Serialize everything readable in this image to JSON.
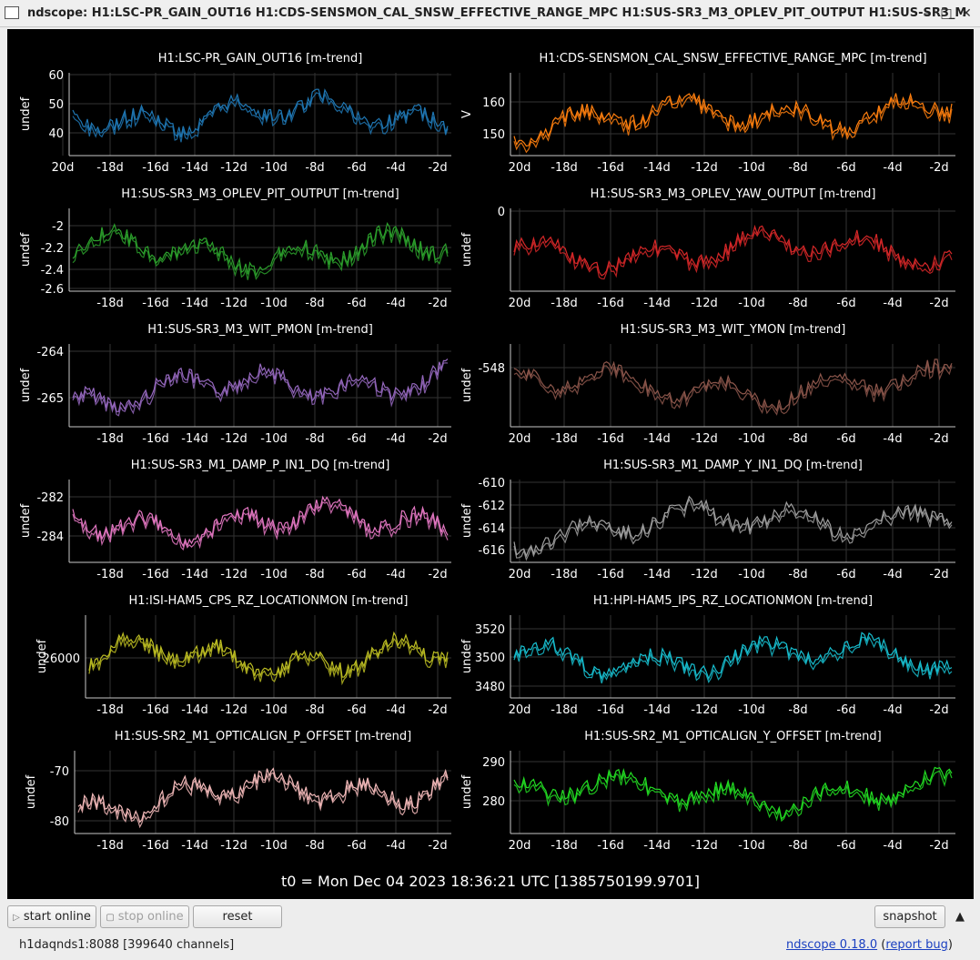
{
  "window": {
    "title": "ndscope: H1:LSC-PR_GAIN_OUT16 H1:CDS-SENSMON_CAL_SNSW_EFFECTIVE_RANGE_MPC H1:SUS-SR3_M3_OPLEV_PIT_OUTPUT H1:SUS-SR3_M",
    "minimize_glyph": "–",
    "maximize_glyph": "□",
    "close_glyph": "✕"
  },
  "t0_label": "t0 = Mon Dec 04 2023 18:36:21 UTC [1385750199.9701]",
  "toolbar": {
    "start_label": "start online",
    "stop_label": "stop online",
    "reset_label": "reset",
    "snapshot_label": "snapshot",
    "collapse_glyph": "▲"
  },
  "status": {
    "server": "h1daqnds1:8088  [399640 channels]",
    "version": "ndscope 0.18.0",
    "open_paren": " (",
    "report_bug": "report bug",
    "close_paren": ")"
  },
  "plots": [
    {
      "title": "H1:LSC-PR_GAIN_OUT16 [m-trend]",
      "ylabel": "undef",
      "color": "#1f77b4",
      "yticks": [
        "60",
        "50",
        "40"
      ],
      "xticks": [
        "20d",
        "-18d",
        "-16d",
        "-14d",
        "-12d",
        "-10d",
        "-8d",
        "-6d",
        "-4d",
        "-2d"
      ]
    },
    {
      "title": "H1:CDS-SENSMON_CAL_SNSW_EFFECTIVE_RANGE_MPC [m-trend]",
      "ylabel": "V",
      "color": "#ff7f0e",
      "yticks": [
        "160",
        "150"
      ],
      "xticks": [
        "20d",
        "-18d",
        "-16d",
        "-14d",
        "-12d",
        "-10d",
        "-8d",
        "-6d",
        "-4d",
        "-2d"
      ]
    },
    {
      "title": "H1:SUS-SR3_M3_OPLEV_PIT_OUTPUT [m-trend]",
      "ylabel": "undef",
      "color": "#2ca02c",
      "yticks": [
        "-2",
        "-2.2",
        "-2.4",
        "-2.6"
      ],
      "xticks": [
        "-18d",
        "-16d",
        "-14d",
        "-12d",
        "-10d",
        "-8d",
        "-6d",
        "-4d",
        "-2d"
      ]
    },
    {
      "title": "H1:SUS-SR3_M3_OPLEV_YAW_OUTPUT [m-trend]",
      "ylabel": "undef",
      "color": "#d62728",
      "yticks": [
        "0"
      ],
      "xticks": [
        "20d",
        "-18d",
        "-16d",
        "-14d",
        "-12d",
        "-10d",
        "-8d",
        "-6d",
        "-4d",
        "-2d"
      ]
    },
    {
      "title": "H1:SUS-SR3_M3_WIT_PMON [m-trend]",
      "ylabel": "undef",
      "color": "#9467bd",
      "yticks": [
        "-264",
        "-265"
      ],
      "xticks": [
        "-18d",
        "-16d",
        "-14d",
        "-12d",
        "-10d",
        "-8d",
        "-6d",
        "-4d",
        "-2d"
      ]
    },
    {
      "title": "H1:SUS-SR3_M3_WIT_YMON [m-trend]",
      "ylabel": "undef",
      "color": "#8c564b",
      "yticks": [
        "-548"
      ],
      "xticks": [
        "20d",
        "-18d",
        "-16d",
        "-14d",
        "-12d",
        "-10d",
        "-8d",
        "-6d",
        "-4d",
        "-2d"
      ]
    },
    {
      "title": "H1:SUS-SR3_M1_DAMP_P_IN1_DQ [m-trend]",
      "ylabel": "undef",
      "color": "#e377c2",
      "yticks": [
        "-282",
        "-284"
      ],
      "xticks": [
        "-18d",
        "-16d",
        "-14d",
        "-12d",
        "-10d",
        "-8d",
        "-6d",
        "-4d",
        "-2d"
      ]
    },
    {
      "title": "H1:SUS-SR3_M1_DAMP_Y_IN1_DQ [m-trend]",
      "ylabel": "undef",
      "color": "#a0a0a0",
      "yticks": [
        "-610",
        "-612",
        "-614",
        "-616"
      ],
      "xticks": [
        "20d",
        "-18d",
        "-16d",
        "-14d",
        "-12d",
        "-10d",
        "-8d",
        "-6d",
        "-4d",
        "-2d"
      ]
    },
    {
      "title": "H1:ISI-HAM5_CPS_RZ_LOCATIONMON [m-trend]",
      "ylabel": "undef",
      "color": "#bcbd22",
      "yticks": [
        "26000"
      ],
      "xticks": [
        "-18d",
        "-16d",
        "-14d",
        "-12d",
        "-10d",
        "-8d",
        "-6d",
        "-4d",
        "-2d"
      ]
    },
    {
      "title": "H1:HPI-HAM5_IPS_RZ_LOCATIONMON [m-trend]",
      "ylabel": "undef",
      "color": "#17becf",
      "yticks": [
        "3520",
        "3500",
        "3480"
      ],
      "xticks": [
        "20d",
        "-18d",
        "-16d",
        "-14d",
        "-12d",
        "-10d",
        "-8d",
        "-6d",
        "-4d",
        "-2d"
      ]
    },
    {
      "title": "H1:SUS-SR2_M1_OPTICALIGN_P_OFFSET [m-trend]",
      "ylabel": "undef",
      "color": "#f2b9b9",
      "yticks": [
        "-70",
        "-80"
      ],
      "xticks": [
        "-18d",
        "-16d",
        "-14d",
        "-12d",
        "-10d",
        "-8d",
        "-6d",
        "-4d",
        "-2d"
      ]
    },
    {
      "title": "H1:SUS-SR2_M1_OPTICALIGN_Y_OFFSET [m-trend]",
      "ylabel": "undef",
      "color": "#22dd22",
      "yticks": [
        "290",
        "280"
      ],
      "xticks": [
        "20d",
        "-18d",
        "-16d",
        "-14d",
        "-12d",
        "-10d",
        "-8d",
        "-6d",
        "-4d",
        "-2d"
      ]
    }
  ]
}
